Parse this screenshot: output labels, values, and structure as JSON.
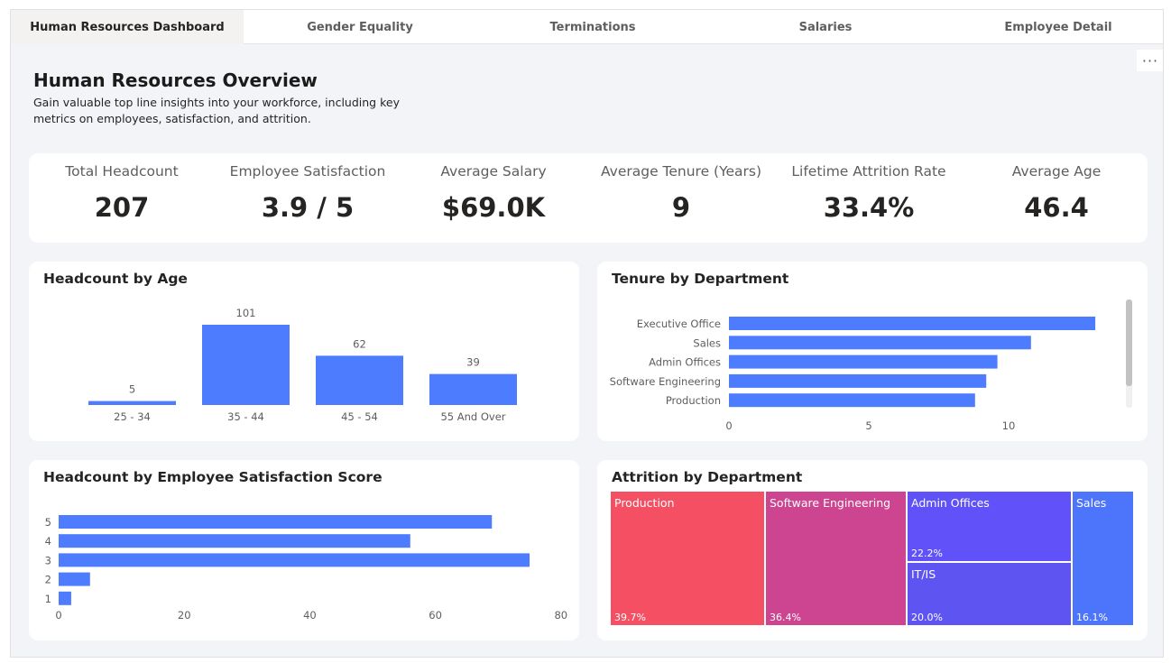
{
  "tabs": [
    {
      "label": "Human Resources Dashboard",
      "active": true
    },
    {
      "label": "Gender Equality",
      "active": false
    },
    {
      "label": "Terminations",
      "active": false
    },
    {
      "label": "Salaries",
      "active": false
    },
    {
      "label": "Employee Detail",
      "active": false
    }
  ],
  "more_icon": "ellipsis-icon",
  "more_label": "···",
  "header": {
    "title": "Human Resources Overview",
    "subtitle": "Gain valuable top line insights into your workforce, including key metrics on employees, satisfaction, and attrition."
  },
  "kpis": [
    {
      "label": "Total Headcount",
      "value": "207"
    },
    {
      "label": "Employee Satisfaction",
      "value": "3.9 / 5"
    },
    {
      "label": "Average Salary",
      "value": "$69.0K"
    },
    {
      "label": "Average Tenure (Years)",
      "value": "9"
    },
    {
      "label": "Lifetime Attrition Rate",
      "value": "33.4%"
    },
    {
      "label": "Average Age",
      "value": "46.4"
    }
  ],
  "colors": {
    "bar": "#4d7cfe",
    "production": "#f44f63",
    "software_engineering": "#cd4590",
    "admin_offices": "#6052f8",
    "it_is": "#5e54f2",
    "sales": "#4d75fb"
  },
  "chart_data": [
    {
      "type": "bar",
      "title": "Headcount by Age",
      "categories": [
        "25 - 34",
        "35 - 44",
        "45 - 54",
        "55 And Over"
      ],
      "values": [
        5,
        101,
        62,
        39
      ],
      "data_labels": [
        "5",
        "101",
        "62",
        "39"
      ],
      "ylim": [
        0,
        101
      ],
      "grid": false
    },
    {
      "type": "bar",
      "orientation": "horizontal",
      "title": "Tenure by Department",
      "categories": [
        "Executive Office",
        "Sales",
        "Admin Offices",
        "Software Engineering",
        "Production"
      ],
      "values": [
        13.1,
        10.8,
        9.6,
        9.2,
        8.8
      ],
      "xlim": [
        0,
        13.5
      ],
      "xticks": [
        "0",
        "5",
        "10"
      ],
      "xtick_values": [
        0,
        5,
        10
      ],
      "grid": false
    },
    {
      "type": "bar",
      "orientation": "horizontal",
      "title": "Headcount by Employee Satisfaction Score",
      "categories": [
        "5",
        "4",
        "3",
        "2",
        "1"
      ],
      "values": [
        69,
        56,
        75,
        5,
        2
      ],
      "xlim": [
        0,
        80
      ],
      "xticks": [
        "0",
        "20",
        "40",
        "60",
        "80"
      ],
      "xtick_values": [
        0,
        20,
        40,
        60,
        80
      ],
      "grid": false
    },
    {
      "type": "treemap",
      "title": "Attrition by Department",
      "items": [
        {
          "name": "Production",
          "label": "39.7%",
          "value": 39.7
        },
        {
          "name": "Software Engineering",
          "label": "36.4%",
          "value": 36.4
        },
        {
          "name": "Admin Offices",
          "label": "22.2%",
          "value": 22.2
        },
        {
          "name": "IT/IS",
          "label": "20.0%",
          "value": 20.0
        },
        {
          "name": "Sales",
          "label": "16.1%",
          "value": 16.1
        }
      ]
    }
  ]
}
